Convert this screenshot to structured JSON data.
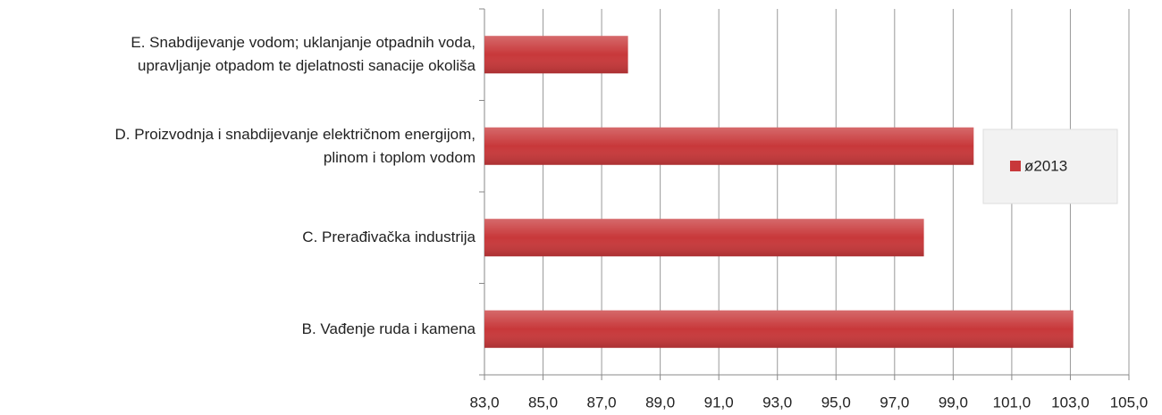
{
  "chart_data": {
    "type": "bar",
    "orientation": "horizontal",
    "categories": [
      "E. Snabdijevanje vodom; uklanjanje otpadnih voda,\nupravljanje otpadom te djelatnosti sanacije okoliša",
      "D. Proizvodnja i snabdijevanje električnom energijom,\nplinom i toplom vodom",
      "C. Prerađivačka industrija",
      "B. Vađenje ruda i kamena"
    ],
    "series": [
      {
        "name": "ø2013",
        "color": "#c8383a",
        "values": [
          87.9,
          99.7,
          98.0,
          103.1
        ]
      }
    ],
    "xlim": [
      83,
      105
    ],
    "xticks": [
      {
        "value": 83,
        "label": "83,0"
      },
      {
        "value": 85,
        "label": "85,0"
      },
      {
        "value": 87,
        "label": "87,0"
      },
      {
        "value": 89,
        "label": "89,0"
      },
      {
        "value": 91,
        "label": "91,0"
      },
      {
        "value": 93,
        "label": "93,0"
      },
      {
        "value": 95,
        "label": "95,0"
      },
      {
        "value": 97,
        "label": "97,0"
      },
      {
        "value": 99,
        "label": "99,0"
      },
      {
        "value": 101,
        "label": "101,0"
      },
      {
        "value": 103,
        "label": "103,0"
      },
      {
        "value": 105,
        "label": "105,0"
      }
    ],
    "grid": true,
    "legend": "right"
  }
}
